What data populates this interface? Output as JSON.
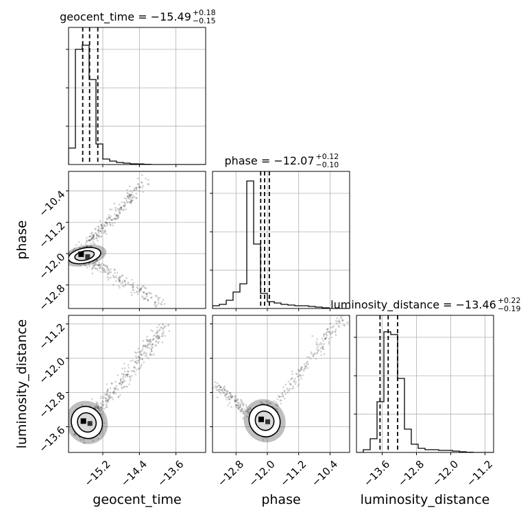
{
  "chart_data": {
    "type": "corner",
    "parameters": [
      "geocent_time",
      "phase",
      "luminosity_distance"
    ],
    "axis_labels": [
      "geocent_time",
      "phase",
      "luminosity_distance"
    ],
    "titles": [
      {
        "name": "geocent_time",
        "text": "geocent_time = −15.49",
        "plus": "+0.18",
        "minus": "−0.15",
        "median": -15.49,
        "upper": 0.18,
        "lower": 0.15
      },
      {
        "name": "phase",
        "text": "phase = −12.07",
        "plus": "+0.12",
        "minus": "−0.10",
        "median": -12.07,
        "upper": 0.12,
        "lower": 0.1
      },
      {
        "name": "luminosity_distance",
        "text": "luminosity_distance = −13.46",
        "plus": "+0.22",
        "minus": "−0.19",
        "median": -13.46,
        "upper": 0.22,
        "lower": 0.19
      }
    ],
    "ranges": [
      [
        -15.95,
        -12.95
      ],
      [
        -13.4,
        -9.9
      ],
      [
        -14.2,
        -11.0
      ]
    ],
    "ticks": [
      {
        "values": [
          -15.2,
          -14.4,
          -13.6
        ],
        "labels": [
          "−15.2",
          "−14.4",
          "−13.6"
        ]
      },
      {
        "values": [
          -12.8,
          -12.0,
          -11.2,
          -10.4
        ],
        "labels": [
          "−12.8",
          "−12.0",
          "−11.2",
          "−10.4"
        ]
      },
      {
        "values": [
          -13.6,
          -12.8,
          -12.0,
          -11.2
        ],
        "labels": [
          "−13.6",
          "−12.8",
          "−12.0",
          "−11.2"
        ]
      }
    ],
    "hist_bins": 20,
    "histograms": [
      [
        0.12,
        0.84,
        0.87,
        0.62,
        0.15,
        0.04,
        0.025,
        0.015,
        0.01,
        0.005,
        0.004,
        0.002,
        0,
        0,
        0,
        0,
        0,
        0,
        0,
        0
      ],
      [
        0.02,
        0.03,
        0.06,
        0.12,
        0.18,
        0.93,
        0.47,
        0.11,
        0.05,
        0.04,
        0.03,
        0.025,
        0.02,
        0.02,
        0.015,
        0.01,
        0.005,
        0,
        0,
        0
      ],
      [
        0.0,
        0.02,
        0.1,
        0.37,
        0.88,
        0.86,
        0.54,
        0.17,
        0.06,
        0.03,
        0.02,
        0.02,
        0.015,
        0.015,
        0.01,
        0.005,
        0.002,
        0,
        0,
        0
      ]
    ],
    "quantile_lines": [
      [
        -15.64,
        -15.49,
        -15.31
      ],
      [
        -12.17,
        -12.07,
        -11.95
      ],
      [
        -13.65,
        -13.46,
        -13.24
      ]
    ],
    "density_centers": [
      {
        "pair": [
          "geocent_time",
          "phase"
        ],
        "center": [
          -15.6,
          -12.05
        ]
      },
      {
        "pair": [
          "geocent_time",
          "luminosity_distance"
        ],
        "center": [
          -15.55,
          -13.5
        ]
      },
      {
        "pair": [
          "phase",
          "luminosity_distance"
        ],
        "center": [
          -12.07,
          -13.46
        ]
      }
    ],
    "grid": true,
    "colors": {
      "hist": "#000000",
      "points": "#000000",
      "grid": "#b0b0b0"
    }
  }
}
